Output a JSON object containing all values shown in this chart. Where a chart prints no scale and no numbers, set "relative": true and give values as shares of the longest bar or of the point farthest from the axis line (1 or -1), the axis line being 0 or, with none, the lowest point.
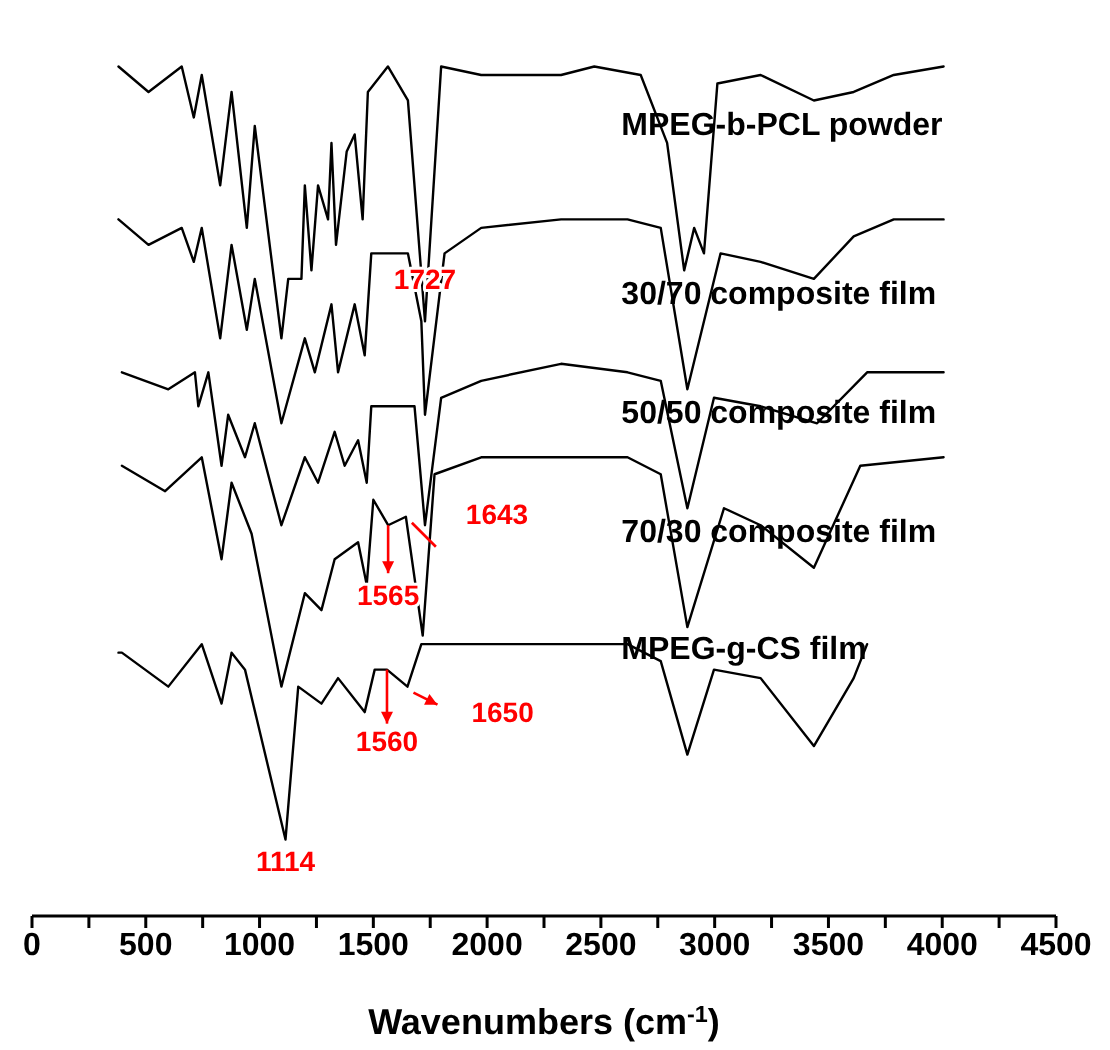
{
  "chart_data": {
    "type": "line",
    "relative": true,
    "tick_labels": "x",
    "xlabel": "Wavenumbers (cm$^{-1}$)",
    "xlim": [
      0,
      4500
    ],
    "xticks": [
      0,
      {
        "value": 250,
        "label": null
      },
      500,
      {
        "value": 750,
        "label": null
      },
      1000,
      {
        "value": 1250,
        "label": null
      },
      1500,
      {
        "value": 1750,
        "label": null
      },
      2000,
      {
        "value": 2250,
        "label": null
      },
      2500,
      {
        "value": 2750,
        "label": null
      },
      3000,
      {
        "value": 3250,
        "label": null
      },
      3500,
      {
        "value": 3750,
        "label": null
      },
      4000,
      {
        "value": 4250,
        "label": null
      },
      4500
    ],
    "series": [
      {
        "name": "MPEG-b-PCL powder",
        "color": "#000000",
        "x": [
          380,
          512,
          658,
          711,
          746,
          827,
          877,
          944,
          979,
          1096,
          1126,
          1184,
          1199,
          1228,
          1257,
          1301,
          1316,
          1336,
          1383,
          1418,
          1453,
          1476,
          1564,
          1652,
          1727,
          1798,
          1974,
          2325,
          2471,
          2675,
          2791,
          2866,
          2910,
          2953,
          3012,
          3202,
          3436,
          3611,
          3787,
          4006
        ],
        "values": [
          1.0,
          0.97,
          1.0,
          0.94,
          0.99,
          0.86,
          0.97,
          0.81,
          0.93,
          0.68,
          0.75,
          0.75,
          0.86,
          0.76,
          0.86,
          0.82,
          0.91,
          0.79,
          0.9,
          0.92,
          0.82,
          0.97,
          1.0,
          0.96,
          0.7,
          1.0,
          0.99,
          0.99,
          1.0,
          0.99,
          0.91,
          0.76,
          0.81,
          0.78,
          0.98,
          0.99,
          0.96,
          0.97,
          0.99,
          1.0
        ]
      },
      {
        "name": "30/70 composite film",
        "color": "#000000",
        "x": [
          380,
          512,
          658,
          711,
          746,
          827,
          877,
          944,
          979,
          1096,
          1199,
          1243,
          1316,
          1345,
          1418,
          1462,
          1491,
          1652,
          1711,
          1727,
          1813,
          1974,
          2325,
          2617,
          2763,
          2880,
          3026,
          3202,
          3436,
          3611,
          3787,
          4006
        ],
        "values": [
          0.82,
          0.79,
          0.81,
          0.77,
          0.81,
          0.68,
          0.79,
          0.69,
          0.75,
          0.58,
          0.68,
          0.64,
          0.72,
          0.64,
          0.72,
          0.66,
          0.78,
          0.78,
          0.7,
          0.59,
          0.78,
          0.81,
          0.82,
          0.82,
          0.81,
          0.62,
          0.78,
          0.77,
          0.75,
          0.8,
          0.82,
          0.82
        ]
      },
      {
        "name": "50/50 composite film",
        "color": "#000000",
        "x": [
          395,
          599,
          716,
          731,
          775,
          833,
          862,
          936,
          979,
          1096,
          1199,
          1257,
          1330,
          1374,
          1433,
          1471,
          1491,
          1681,
          1727,
          1798,
          1974,
          2325,
          2617,
          2763,
          2880,
          2997,
          3202,
          3450,
          3670,
          4006
        ],
        "values": [
          0.64,
          0.62,
          0.64,
          0.6,
          0.64,
          0.53,
          0.59,
          0.54,
          0.58,
          0.46,
          0.54,
          0.51,
          0.57,
          0.53,
          0.56,
          0.51,
          0.6,
          0.6,
          0.46,
          0.61,
          0.63,
          0.65,
          0.64,
          0.63,
          0.48,
          0.61,
          0.6,
          0.58,
          0.64,
          0.64
        ]
      },
      {
        "name": "70/30 composite film",
        "color": "#000000",
        "x": [
          395,
          585,
          746,
          833,
          877,
          965,
          1096,
          1199,
          1272,
          1330,
          1433,
          1471,
          1500,
          1565,
          1643,
          1717,
          1769,
          1974,
          2325,
          2617,
          2763,
          2880,
          3041,
          3202,
          3436,
          3640,
          4006
        ],
        "values": [
          0.53,
          0.5,
          0.54,
          0.42,
          0.51,
          0.45,
          0.27,
          0.38,
          0.36,
          0.42,
          0.44,
          0.39,
          0.49,
          0.46,
          0.47,
          0.33,
          0.52,
          0.54,
          0.54,
          0.54,
          0.52,
          0.34,
          0.48,
          0.46,
          0.41,
          0.53,
          0.54
        ]
      },
      {
        "name": "MPEG-g-CS film",
        "color": "#000000",
        "x": [
          380,
          395,
          599,
          746,
          833,
          877,
          936,
          1114,
          1170,
          1272,
          1345,
          1462,
          1506,
          1560,
          1650,
          1711,
          1974,
          2325,
          2617,
          2763,
          2880,
          2997,
          3202,
          3436,
          3611,
          3670
        ],
        "values": [
          0.31,
          0.31,
          0.27,
          0.32,
          0.25,
          0.31,
          0.29,
          0.09,
          0.27,
          0.25,
          0.28,
          0.24,
          0.29,
          0.29,
          0.27,
          0.32,
          0.32,
          0.32,
          0.32,
          0.3,
          0.19,
          0.29,
          0.28,
          0.2,
          0.28,
          0.32
        ]
      }
    ],
    "annotations": [
      {
        "text": "1727",
        "x": 1727,
        "y": 0.7
      },
      {
        "text": "1643",
        "x": 1643,
        "y": 0.47
      },
      {
        "text": "1565",
        "x": 1565,
        "y": 0.46
      },
      {
        "text": "1650",
        "x": 1650,
        "y": 0.27
      },
      {
        "text": "1560",
        "x": 1560,
        "y": 0.29
      },
      {
        "text": "1114",
        "x": 1114,
        "y": 0.09
      }
    ]
  }
}
